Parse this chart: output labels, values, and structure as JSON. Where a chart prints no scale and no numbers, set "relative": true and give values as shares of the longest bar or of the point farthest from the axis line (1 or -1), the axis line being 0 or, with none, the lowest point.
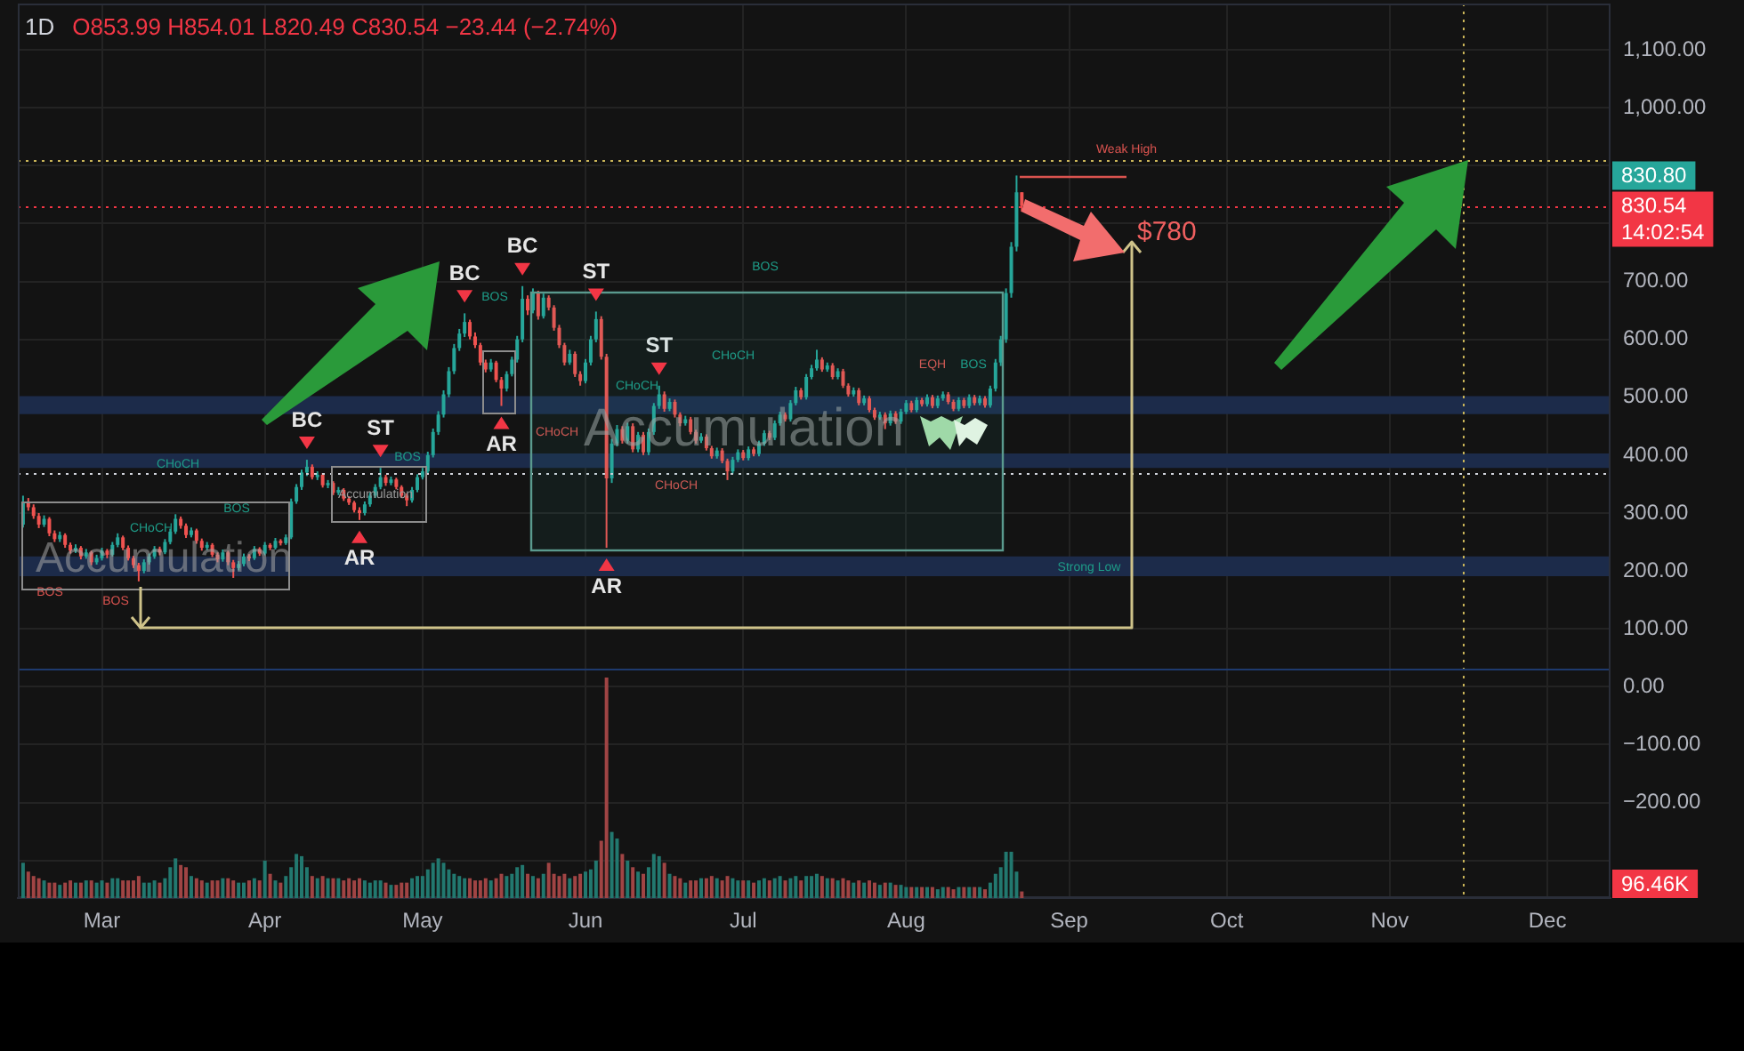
{
  "chart_data": [
    {
      "type": "candlestick",
      "title": "1D",
      "subtitle": "O853.99 H854.01 L820.49 C830.54 −23.44 (−2.74%)",
      "xlim": [
        "--02-13",
        "--12-13"
      ],
      "xticks": [
        {
          "value": "--03-01",
          "label": "Mar"
        },
        {
          "value": "--04-01",
          "label": "Apr"
        },
        {
          "value": "--05-01",
          "label": "May"
        },
        {
          "value": "--06-01",
          "label": "Jun"
        },
        {
          "value": "--07-01",
          "label": "Jul"
        },
        {
          "value": "--08-01",
          "label": "Aug"
        },
        {
          "value": "--09-01",
          "label": "Sep"
        },
        {
          "value": "--10-01",
          "label": "Oct"
        },
        {
          "value": "--11-01",
          "label": "Nov"
        },
        {
          "value": "--12-01",
          "label": "Dec"
        }
      ],
      "ylim": [
        -365,
        1180
      ],
      "yticks": [
        {
          "value": 1100,
          "label": "1,100.00"
        },
        {
          "value": 1000,
          "label": "1,000.00"
        },
        {
          "value": 900,
          "label": null
        },
        {
          "value": 800,
          "label": null
        },
        {
          "value": 700,
          "label": "700.00"
        },
        {
          "value": 600,
          "label": "600.00"
        },
        {
          "value": 500,
          "label": "500.00"
        },
        {
          "value": 400,
          "label": "400.00"
        },
        {
          "value": 300,
          "label": "300.00"
        },
        {
          "value": 200,
          "label": "200.00"
        },
        {
          "value": 100,
          "label": "100.00"
        },
        {
          "value": 0,
          "label": "0.00"
        },
        {
          "value": -100,
          "label": "−100.00"
        },
        {
          "value": -200,
          "label": "−200.00"
        },
        {
          "value": -300,
          "label": null
        }
      ],
      "grid": true,
      "x": [
        "--02-14",
        "--02-15",
        "--02-16",
        "--02-17",
        "--02-18",
        "--02-19",
        "--02-20",
        "--02-21",
        "--02-22",
        "--02-23",
        "--02-24",
        "--02-25",
        "--02-26",
        "--02-27",
        "--02-28",
        "--03-01",
        "--03-02",
        "--03-03",
        "--03-04",
        "--03-05",
        "--03-06",
        "--03-07",
        "--03-08",
        "--03-09",
        "--03-10",
        "--03-11",
        "--03-12",
        "--03-13",
        "--03-14",
        "--03-15",
        "--03-16",
        "--03-17",
        "--03-18",
        "--03-19",
        "--03-20",
        "--03-21",
        "--03-22",
        "--03-23",
        "--03-24",
        "--03-25",
        "--03-26",
        "--03-27",
        "--03-28",
        "--03-29",
        "--03-30",
        "--03-31",
        "--04-01",
        "--04-02",
        "--04-03",
        "--04-04",
        "--04-05",
        "--04-06",
        "--04-07",
        "--04-08",
        "--04-09",
        "--04-10",
        "--04-11",
        "--04-12",
        "--04-13",
        "--04-14",
        "--04-15",
        "--04-16",
        "--04-17",
        "--04-18",
        "--04-19",
        "--04-20",
        "--04-21",
        "--04-22",
        "--04-23",
        "--04-24",
        "--04-25",
        "--04-26",
        "--04-27",
        "--04-28",
        "--04-29",
        "--04-30",
        "--05-01",
        "--05-02",
        "--05-03",
        "--05-04",
        "--05-05",
        "--05-06",
        "--05-07",
        "--05-08",
        "--05-09",
        "--05-10",
        "--05-11",
        "--05-12",
        "--05-13",
        "--05-14",
        "--05-15",
        "--05-16",
        "--05-17",
        "--05-18",
        "--05-19",
        "--05-20",
        "--05-21",
        "--05-22",
        "--05-23",
        "--05-24",
        "--05-25",
        "--05-26",
        "--05-27",
        "--05-28",
        "--05-29",
        "--05-30",
        "--05-31",
        "--06-01",
        "--06-02",
        "--06-03",
        "--06-04",
        "--06-05",
        "--06-06",
        "--06-07",
        "--06-08",
        "--06-09",
        "--06-10",
        "--06-11",
        "--06-12",
        "--06-13",
        "--06-14",
        "--06-15",
        "--06-16",
        "--06-17",
        "--06-18",
        "--06-19",
        "--06-20",
        "--06-21",
        "--06-22",
        "--06-23",
        "--06-24",
        "--06-25",
        "--06-26",
        "--06-27",
        "--06-28",
        "--06-29",
        "--06-30",
        "--07-01",
        "--07-02",
        "--07-03",
        "--07-04",
        "--07-05",
        "--07-06",
        "--07-07",
        "--07-08",
        "--07-09",
        "--07-10",
        "--07-11",
        "--07-12",
        "--07-13",
        "--07-14",
        "--07-15",
        "--07-16",
        "--07-17",
        "--07-18",
        "--07-19",
        "--07-20",
        "--07-21",
        "--07-22",
        "--07-23",
        "--07-24",
        "--07-25",
        "--07-26",
        "--07-27",
        "--07-28",
        "--07-29",
        "--07-30",
        "--07-31",
        "--08-01",
        "--08-02",
        "--08-03",
        "--08-04",
        "--08-05",
        "--08-06",
        "--08-07",
        "--08-08",
        "--08-09",
        "--08-10",
        "--08-11",
        "--08-12",
        "--08-13",
        "--08-14",
        "--08-15",
        "--08-16",
        "--08-17",
        "--08-18",
        "--08-19",
        "--08-20",
        "--08-21",
        "--08-22",
        "--08-23"
      ],
      "ohlc": [
        [
          280,
          330,
          275,
          320
        ],
        [
          320,
          326,
          304,
          310
        ],
        [
          310,
          315,
          290,
          295
        ],
        [
          295,
          300,
          274,
          280
        ],
        [
          280,
          296,
          276,
          290
        ],
        [
          290,
          293,
          260,
          265
        ],
        [
          265,
          270,
          250,
          255
        ],
        [
          255,
          268,
          250,
          262
        ],
        [
          262,
          265,
          240,
          245
        ],
        [
          245,
          249,
          230,
          235
        ],
        [
          235,
          246,
          231,
          240
        ],
        [
          240,
          243,
          220,
          225
        ],
        [
          225,
          238,
          221,
          232
        ],
        [
          232,
          235,
          210,
          215
        ],
        [
          215,
          228,
          211,
          222
        ],
        [
          222,
          240,
          218,
          235
        ],
        [
          235,
          238,
          222,
          228
        ],
        [
          228,
          250,
          225,
          245
        ],
        [
          245,
          265,
          241,
          258
        ],
        [
          258,
          261,
          236,
          240
        ],
        [
          240,
          244,
          218,
          222
        ],
        [
          222,
          226,
          205,
          210
        ],
        [
          210,
          214,
          182,
          200
        ],
        [
          200,
          220,
          196,
          215
        ],
        [
          215,
          230,
          211,
          225
        ],
        [
          225,
          243,
          221,
          238
        ],
        [
          238,
          242,
          227,
          232
        ],
        [
          232,
          255,
          229,
          250
        ],
        [
          250,
          273,
          246,
          268
        ],
        [
          268,
          298,
          264,
          290
        ],
        [
          290,
          294,
          273,
          278
        ],
        [
          278,
          282,
          257,
          262
        ],
        [
          262,
          275,
          258,
          270
        ],
        [
          270,
          273,
          247,
          252
        ],
        [
          252,
          256,
          235,
          240
        ],
        [
          240,
          250,
          236,
          245
        ],
        [
          245,
          248,
          224,
          228
        ],
        [
          228,
          232,
          215,
          220
        ],
        [
          220,
          237,
          216,
          232
        ],
        [
          232,
          235,
          210,
          215
        ],
        [
          215,
          219,
          188,
          205
        ],
        [
          205,
          217,
          201,
          212
        ],
        [
          212,
          230,
          208,
          225
        ],
        [
          225,
          229,
          217,
          222
        ],
        [
          222,
          243,
          219,
          238
        ],
        [
          238,
          241,
          226,
          230
        ],
        [
          230,
          250,
          227,
          245
        ],
        [
          245,
          248,
          236,
          240
        ],
        [
          240,
          257,
          237,
          252
        ],
        [
          252,
          255,
          244,
          248
        ],
        [
          248,
          263,
          245,
          258
        ],
        [
          258,
          325,
          255,
          320
        ],
        [
          320,
          350,
          316,
          345
        ],
        [
          345,
          375,
          340,
          370
        ],
        [
          370,
          392,
          364,
          380
        ],
        [
          380,
          384,
          358,
          362
        ],
        [
          362,
          372,
          357,
          366
        ],
        [
          366,
          369,
          344,
          348
        ],
        [
          348,
          357,
          343,
          352
        ],
        [
          352,
          355,
          331,
          335
        ],
        [
          335,
          345,
          331,
          340
        ],
        [
          340,
          343,
          321,
          325
        ],
        [
          325,
          329,
          314,
          318
        ],
        [
          318,
          321,
          301,
          305
        ],
        [
          305,
          310,
          288,
          300
        ],
        [
          300,
          320,
          296,
          315
        ],
        [
          315,
          335,
          311,
          330
        ],
        [
          330,
          350,
          326,
          345
        ],
        [
          345,
          378,
          341,
          362
        ],
        [
          362,
          366,
          347,
          352
        ],
        [
          352,
          363,
          348,
          358
        ],
        [
          358,
          361,
          341,
          345
        ],
        [
          345,
          348,
          326,
          330
        ],
        [
          330,
          334,
          312,
          322
        ],
        [
          322,
          345,
          318,
          340
        ],
        [
          340,
          367,
          336,
          362
        ],
        [
          362,
          378,
          358,
          372
        ],
        [
          372,
          406,
          368,
          400
        ],
        [
          400,
          446,
          396,
          440
        ],
        [
          440,
          476,
          435,
          470
        ],
        [
          470,
          512,
          465,
          505
        ],
        [
          505,
          552,
          500,
          545
        ],
        [
          545,
          592,
          540,
          585
        ],
        [
          585,
          618,
          580,
          610
        ],
        [
          610,
          645,
          604,
          630
        ],
        [
          630,
          634,
          600,
          605
        ],
        [
          605,
          612,
          585,
          590
        ],
        [
          590,
          594,
          555,
          560
        ],
        [
          560,
          565,
          543,
          548
        ],
        [
          548,
          566,
          544,
          560
        ],
        [
          560,
          563,
          526,
          530
        ],
        [
          530,
          535,
          485,
          515
        ],
        [
          515,
          545,
          510,
          540
        ],
        [
          540,
          570,
          536,
          565
        ],
        [
          565,
          606,
          560,
          600
        ],
        [
          600,
          692,
          595,
          670
        ],
        [
          670,
          676,
          642,
          650
        ],
        [
          650,
          688,
          645,
          680
        ],
        [
          680,
          684,
          634,
          640
        ],
        [
          640,
          679,
          636,
          672
        ],
        [
          672,
          676,
          650,
          655
        ],
        [
          655,
          659,
          615,
          620
        ],
        [
          620,
          625,
          585,
          590
        ],
        [
          590,
          594,
          555,
          560
        ],
        [
          560,
          582,
          556,
          575
        ],
        [
          575,
          579,
          535,
          540
        ],
        [
          540,
          545,
          520,
          528
        ],
        [
          528,
          566,
          524,
          560
        ],
        [
          560,
          606,
          555,
          600
        ],
        [
          600,
          648,
          595,
          635
        ],
        [
          635,
          640,
          565,
          570
        ],
        [
          570,
          575,
          240,
          360
        ],
        [
          360,
          428,
          352,
          420
        ],
        [
          420,
          452,
          415,
          445
        ],
        [
          445,
          450,
          420,
          425
        ],
        [
          425,
          456,
          420,
          450
        ],
        [
          450,
          455,
          405,
          410
        ],
        [
          410,
          440,
          405,
          435
        ],
        [
          435,
          440,
          400,
          405
        ],
        [
          405,
          446,
          400,
          440
        ],
        [
          440,
          490,
          435,
          485
        ],
        [
          485,
          520,
          480,
          505
        ],
        [
          505,
          510,
          475,
          480
        ],
        [
          480,
          498,
          476,
          492
        ],
        [
          492,
          496,
          465,
          470
        ],
        [
          470,
          474,
          450,
          455
        ],
        [
          455,
          468,
          451,
          462
        ],
        [
          462,
          466,
          436,
          440
        ],
        [
          440,
          444,
          420,
          425
        ],
        [
          425,
          438,
          421,
          432
        ],
        [
          432,
          436,
          408,
          412
        ],
        [
          412,
          416,
          394,
          398
        ],
        [
          398,
          413,
          394,
          408
        ],
        [
          408,
          412,
          386,
          390
        ],
        [
          390,
          394,
          357,
          372
        ],
        [
          372,
          397,
          368,
          392
        ],
        [
          392,
          410,
          388,
          405
        ],
        [
          405,
          409,
          391,
          395
        ],
        [
          395,
          415,
          391,
          410
        ],
        [
          410,
          414,
          398,
          402
        ],
        [
          402,
          425,
          398,
          420
        ],
        [
          420,
          443,
          416,
          438
        ],
        [
          438,
          442,
          426,
          430
        ],
        [
          430,
          460,
          426,
          455
        ],
        [
          455,
          475,
          451,
          470
        ],
        [
          470,
          474,
          458,
          462
        ],
        [
          462,
          495,
          458,
          490
        ],
        [
          490,
          518,
          486,
          512
        ],
        [
          512,
          516,
          496,
          500
        ],
        [
          500,
          540,
          496,
          535
        ],
        [
          535,
          556,
          531,
          550
        ],
        [
          550,
          582,
          546,
          565
        ],
        [
          565,
          569,
          544,
          548
        ],
        [
          548,
          560,
          544,
          555
        ],
        [
          555,
          559,
          531,
          535
        ],
        [
          535,
          550,
          531,
          545
        ],
        [
          545,
          549,
          516,
          520
        ],
        [
          520,
          524,
          501,
          505
        ],
        [
          505,
          517,
          501,
          512
        ],
        [
          512,
          516,
          486,
          490
        ],
        [
          490,
          503,
          486,
          498
        ],
        [
          498,
          502,
          474,
          478
        ],
        [
          478,
          482,
          461,
          465
        ],
        [
          465,
          475,
          461,
          470
        ],
        [
          470,
          474,
          445,
          455
        ],
        [
          455,
          477,
          451,
          472
        ],
        [
          472,
          476,
          454,
          458
        ],
        [
          458,
          480,
          454,
          475
        ],
        [
          475,
          495,
          471,
          490
        ],
        [
          490,
          494,
          474,
          478
        ],
        [
          478,
          500,
          474,
          495
        ],
        [
          495,
          499,
          484,
          488
        ],
        [
          488,
          505,
          484,
          500
        ],
        [
          500,
          504,
          481,
          485
        ],
        [
          485,
          503,
          481,
          498
        ],
        [
          498,
          510,
          494,
          505
        ],
        [
          505,
          509,
          488,
          492
        ],
        [
          492,
          496,
          476,
          480
        ],
        [
          480,
          500,
          476,
          495
        ],
        [
          495,
          499,
          481,
          485
        ],
        [
          485,
          505,
          481,
          500
        ],
        [
          500,
          504,
          486,
          490
        ],
        [
          490,
          503,
          486,
          498
        ],
        [
          498,
          502,
          482,
          486
        ],
        [
          486,
          520,
          482,
          515
        ],
        [
          515,
          566,
          510,
          560
        ],
        [
          560,
          606,
          554,
          600
        ],
        [
          600,
          688,
          594,
          680
        ],
        [
          680,
          768,
          672,
          760
        ],
        [
          760,
          883,
          752,
          853.99
        ],
        [
          853.99,
          854.01,
          820.49,
          830.54
        ]
      ],
      "ref_lines": [
        {
          "axis": "y",
          "value": 830.54,
          "label": "830.54\n14:02:54",
          "color": "#f23645",
          "line_style": "dotted"
        },
        {
          "axis": "y",
          "value": 910,
          "color": "#c9b458",
          "line_style": "dotted"
        },
        {
          "axis": "x",
          "value": "--11-15",
          "color": "#c9b458",
          "line_style": "dotted"
        },
        {
          "axis": "y",
          "value": 368,
          "color": "#d1d4dc",
          "line_style": "dotted"
        },
        {
          "axis": "y",
          "value": 30,
          "color": "#1e3a6e"
        }
      ],
      "bands": [
        {
          "axis": "y",
          "from": 471,
          "to": 502,
          "color": "#1c2b4a"
        },
        {
          "axis": "y",
          "from": 378,
          "to": 403,
          "color": "#1c2b4a"
        },
        {
          "axis": "y",
          "from": 191,
          "to": 225,
          "color": "#1c2b4a"
        }
      ],
      "annotations": [
        {
          "text": "BC",
          "x": "--04-09",
          "y": 392
        },
        {
          "text": "ST",
          "x": "--04-23",
          "y": 378
        },
        {
          "text": "AR",
          "x": "--04-19",
          "y": 288
        },
        {
          "text": "BC",
          "x": "--05-09",
          "y": 645
        },
        {
          "text": "AR",
          "x": "--05-16",
          "y": 485
        },
        {
          "text": "BC",
          "x": "--05-20",
          "y": 692
        },
        {
          "text": "ST",
          "x": "--06-03",
          "y": 648
        },
        {
          "text": "ST",
          "x": "--06-15",
          "y": 520
        },
        {
          "text": "AR",
          "x": "--06-05",
          "y": 240
        },
        "Accumulation",
        "Accumulation",
        "Accumulation",
        "CHoCH",
        "CHoCH",
        "BOS",
        "BOS",
        "BOS",
        "BOS",
        "BOS",
        "CHoCH",
        "CHoCH",
        "CHoCH",
        "CHoCH",
        "BOS",
        "EQH",
        "BOS",
        "Weak High",
        "Strong Low",
        "$780",
        "830.80"
      ]
    },
    {
      "type": "bar",
      "relative": true,
      "tick_labels": false,
      "xlim": [
        "--02-13",
        "--12-13"
      ],
      "x": [
        "--02-14",
        "--02-15",
        "--02-16",
        "--02-17",
        "--02-18",
        "--02-19",
        "--02-20",
        "--02-21",
        "--02-22",
        "--02-23",
        "--02-24",
        "--02-25",
        "--02-26",
        "--02-27",
        "--02-28",
        "--03-01",
        "--03-02",
        "--03-03",
        "--03-04",
        "--03-05",
        "--03-06",
        "--03-07",
        "--03-08",
        "--03-09",
        "--03-10",
        "--03-11",
        "--03-12",
        "--03-13",
        "--03-14",
        "--03-15",
        "--03-16",
        "--03-17",
        "--03-18",
        "--03-19",
        "--03-20",
        "--03-21",
        "--03-22",
        "--03-23",
        "--03-24",
        "--03-25",
        "--03-26",
        "--03-27",
        "--03-28",
        "--03-29",
        "--03-30",
        "--03-31",
        "--04-01",
        "--04-02",
        "--04-03",
        "--04-04",
        "--04-05",
        "--04-06",
        "--04-07",
        "--04-08",
        "--04-09",
        "--04-10",
        "--04-11",
        "--04-12",
        "--04-13",
        "--04-14",
        "--04-15",
        "--04-16",
        "--04-17",
        "--04-18",
        "--04-19",
        "--04-20",
        "--04-21",
        "--04-22",
        "--04-23",
        "--04-24",
        "--04-25",
        "--04-26",
        "--04-27",
        "--04-28",
        "--04-29",
        "--04-30",
        "--05-01",
        "--05-02",
        "--05-03",
        "--05-04",
        "--05-05",
        "--05-06",
        "--05-07",
        "--05-08",
        "--05-09",
        "--05-10",
        "--05-11",
        "--05-12",
        "--05-13",
        "--05-14",
        "--05-15",
        "--05-16",
        "--05-17",
        "--05-18",
        "--05-19",
        "--05-20",
        "--05-21",
        "--05-22",
        "--05-23",
        "--05-24",
        "--05-25",
        "--05-26",
        "--05-27",
        "--05-28",
        "--05-29",
        "--05-30",
        "--05-31",
        "--06-01",
        "--06-02",
        "--06-03",
        "--06-04",
        "--06-05",
        "--06-06",
        "--06-07",
        "--06-08",
        "--06-09",
        "--06-10",
        "--06-11",
        "--06-12",
        "--06-13",
        "--06-14",
        "--06-15",
        "--06-16",
        "--06-17",
        "--06-18",
        "--06-19",
        "--06-20",
        "--06-21",
        "--06-22",
        "--06-23",
        "--06-24",
        "--06-25",
        "--06-26",
        "--06-27",
        "--06-28",
        "--06-29",
        "--06-30",
        "--07-01",
        "--07-02",
        "--07-03",
        "--07-04",
        "--07-05",
        "--07-06",
        "--07-07",
        "--07-08",
        "--07-09",
        "--07-10",
        "--07-11",
        "--07-12",
        "--07-13",
        "--07-14",
        "--07-15",
        "--07-16",
        "--07-17",
        "--07-18",
        "--07-19",
        "--07-20",
        "--07-21",
        "--07-22",
        "--07-23",
        "--07-24",
        "--07-25",
        "--07-26",
        "--07-27",
        "--07-28",
        "--07-29",
        "--07-30",
        "--07-31",
        "--08-01",
        "--08-02",
        "--08-03",
        "--08-04",
        "--08-05",
        "--08-06",
        "--08-07",
        "--08-08",
        "--08-09",
        "--08-10",
        "--08-11",
        "--08-12",
        "--08-13",
        "--08-14",
        "--08-15",
        "--08-16",
        "--08-17",
        "--08-18",
        "--08-19",
        "--08-20",
        "--08-21",
        "--08-22",
        "--08-23"
      ],
      "values": [
        0.16,
        0.12,
        0.1,
        0.09,
        0.08,
        0.07,
        0.07,
        0.06,
        0.07,
        0.08,
        0.07,
        0.07,
        0.08,
        0.08,
        0.07,
        0.08,
        0.07,
        0.09,
        0.09,
        0.08,
        0.08,
        0.08,
        0.1,
        0.07,
        0.07,
        0.08,
        0.07,
        0.09,
        0.14,
        0.18,
        0.15,
        0.14,
        0.1,
        0.09,
        0.08,
        0.07,
        0.08,
        0.08,
        0.09,
        0.09,
        0.08,
        0.07,
        0.07,
        0.08,
        0.09,
        0.08,
        0.17,
        0.11,
        0.08,
        0.07,
        0.1,
        0.14,
        0.2,
        0.19,
        0.14,
        0.1,
        0.09,
        0.1,
        0.09,
        0.09,
        0.09,
        0.08,
        0.09,
        0.08,
        0.09,
        0.08,
        0.07,
        0.08,
        0.08,
        0.07,
        0.06,
        0.06,
        0.07,
        0.07,
        0.09,
        0.1,
        0.1,
        0.13,
        0.16,
        0.18,
        0.16,
        0.13,
        0.11,
        0.1,
        0.09,
        0.09,
        0.08,
        0.08,
        0.09,
        0.08,
        0.09,
        0.11,
        0.1,
        0.11,
        0.14,
        0.15,
        0.11,
        0.1,
        0.09,
        0.11,
        0.16,
        0.11,
        0.1,
        0.11,
        0.09,
        0.1,
        0.11,
        0.12,
        0.13,
        0.17,
        0.26,
        1,
        0.3,
        0.27,
        0.2,
        0.17,
        0.14,
        0.12,
        0.11,
        0.14,
        0.2,
        0.19,
        0.16,
        0.11,
        0.1,
        0.09,
        0.07,
        0.08,
        0.08,
        0.09,
        0.09,
        0.1,
        0.09,
        0.08,
        0.1,
        0.09,
        0.08,
        0.08,
        0.08,
        0.07,
        0.08,
        0.09,
        0.08,
        0.09,
        0.1,
        0.08,
        0.09,
        0.1,
        0.08,
        0.1,
        0.1,
        0.11,
        0.1,
        0.09,
        0.09,
        0.08,
        0.09,
        0.08,
        0.07,
        0.08,
        0.07,
        0.08,
        0.07,
        0.06,
        0.07,
        0.07,
        0.06,
        0.06,
        0.05,
        0.05,
        0.05,
        0.05,
        0.05,
        0.05,
        0.04,
        0.05,
        0.05,
        0.04,
        0.05,
        0.05,
        0.05,
        0.05,
        0.05,
        0.04,
        0.07,
        0.11,
        0.14,
        0.21,
        0.21,
        0.12,
        0.03
      ],
      "colors": [
        "#22786f",
        "#a04444",
        "#a04444",
        "#a04444",
        "#22786f",
        "#a04444",
        "#a04444",
        "#22786f",
        "#a04444",
        "#a04444",
        "#22786f",
        "#a04444",
        "#22786f",
        "#a04444",
        "#22786f",
        "#22786f",
        "#a04444",
        "#22786f",
        "#22786f",
        "#a04444",
        "#a04444",
        "#a04444",
        "#a04444",
        "#22786f",
        "#22786f",
        "#22786f",
        "#a04444",
        "#22786f",
        "#22786f",
        "#22786f",
        "#a04444",
        "#a04444",
        "#22786f",
        "#a04444",
        "#a04444",
        "#22786f",
        "#a04444",
        "#a04444",
        "#22786f",
        "#a04444",
        "#a04444",
        "#22786f",
        "#22786f",
        "#a04444",
        "#22786f",
        "#a04444",
        "#22786f",
        "#a04444",
        "#22786f",
        "#a04444",
        "#22786f",
        "#22786f",
        "#22786f",
        "#22786f",
        "#22786f",
        "#a04444",
        "#22786f",
        "#a04444",
        "#22786f",
        "#a04444",
        "#22786f",
        "#a04444",
        "#a04444",
        "#a04444",
        "#a04444",
        "#22786f",
        "#22786f",
        "#22786f",
        "#22786f",
        "#a04444",
        "#22786f",
        "#a04444",
        "#a04444",
        "#a04444",
        "#22786f",
        "#22786f",
        "#22786f",
        "#22786f",
        "#22786f",
        "#22786f",
        "#22786f",
        "#22786f",
        "#22786f",
        "#22786f",
        "#22786f",
        "#a04444",
        "#a04444",
        "#a04444",
        "#a04444",
        "#22786f",
        "#a04444",
        "#a04444",
        "#22786f",
        "#22786f",
        "#22786f",
        "#22786f",
        "#a04444",
        "#22786f",
        "#a04444",
        "#22786f",
        "#a04444",
        "#a04444",
        "#a04444",
        "#a04444",
        "#22786f",
        "#a04444",
        "#a04444",
        "#22786f",
        "#22786f",
        "#22786f",
        "#a04444",
        "#a04444",
        "#22786f",
        "#22786f",
        "#a04444",
        "#22786f",
        "#a04444",
        "#22786f",
        "#a04444",
        "#22786f",
        "#22786f",
        "#22786f",
        "#a04444",
        "#22786f",
        "#a04444",
        "#a04444",
        "#22786f",
        "#a04444",
        "#a04444",
        "#22786f",
        "#a04444",
        "#a04444",
        "#22786f",
        "#a04444",
        "#a04444",
        "#22786f",
        "#22786f",
        "#a04444",
        "#22786f",
        "#a04444",
        "#22786f",
        "#22786f",
        "#a04444",
        "#22786f",
        "#22786f",
        "#a04444",
        "#22786f",
        "#22786f",
        "#a04444",
        "#22786f",
        "#22786f",
        "#22786f",
        "#a04444",
        "#22786f",
        "#a04444",
        "#22786f",
        "#a04444",
        "#a04444",
        "#22786f",
        "#a04444",
        "#22786f",
        "#a04444",
        "#a04444",
        "#22786f",
        "#a04444",
        "#22786f",
        "#a04444",
        "#22786f",
        "#22786f",
        "#a04444",
        "#22786f",
        "#a04444",
        "#22786f",
        "#a04444",
        "#22786f",
        "#22786f",
        "#a04444",
        "#a04444",
        "#22786f",
        "#a04444",
        "#22786f",
        "#a04444",
        "#22786f",
        "#a04444",
        "#22786f",
        "#22786f",
        "#22786f",
        "#22786f",
        "#22786f",
        "#22786f",
        "#a04444"
      ],
      "annotations": [
        "96.46K"
      ]
    }
  ]
}
